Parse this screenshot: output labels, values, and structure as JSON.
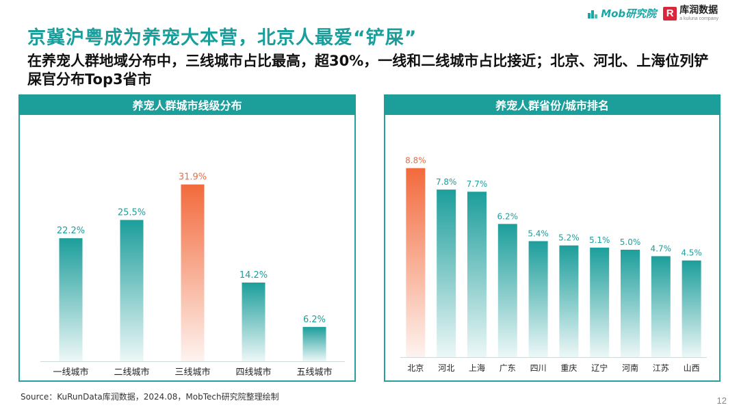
{
  "header": {
    "title": "京冀沪粤成为养宠大本营，北京人最爱“铲屎”",
    "subtitle": "在养宠人群地域分布中，三线城市占比最高，超30%，一线和二线城市占比接近；北京、河北、上海位列铲屎官分布Top3省市"
  },
  "brand": {
    "mob_label": "Mob研究院",
    "kurun_mark": "R",
    "kurun_label": "库润数据",
    "kurun_sub": "a kuluna company"
  },
  "colors": {
    "teal": "#1c9e9b",
    "highlight": "#f26a3c"
  },
  "chart_data": [
    {
      "type": "bar",
      "title": "养宠人群城市线级分布",
      "categories": [
        "一线城市",
        "二线城市",
        "三线城市",
        "四线城市",
        "五线城市"
      ],
      "values": [
        22.2,
        25.5,
        31.9,
        14.2,
        6.2
      ],
      "labels": [
        "22.2%",
        "25.5%",
        "31.9%",
        "14.2%",
        "6.2%"
      ],
      "highlight_index": 2,
      "ylim": [
        0,
        40
      ],
      "grid": false
    },
    {
      "type": "bar",
      "title": "养宠人群省份/城市排名",
      "categories": [
        "北京",
        "河北",
        "上海",
        "广东",
        "四川",
        "重庆",
        "辽宁",
        "河南",
        "江苏",
        "山西"
      ],
      "values": [
        8.8,
        7.8,
        7.7,
        6.2,
        5.4,
        5.2,
        5.1,
        5.0,
        4.7,
        4.5
      ],
      "labels": [
        "8.8%",
        "7.8%",
        "7.7%",
        "6.2%",
        "5.4%",
        "5.2%",
        "5.1%",
        "5.0%",
        "4.7%",
        "4.5%"
      ],
      "highlight_index": 0,
      "ylim": [
        0,
        10
      ],
      "grid": false
    }
  ],
  "footer": {
    "source": "Source：KuRunData库润数据，2024.08，MobTech研究院整理绘制",
    "page_number": "12"
  }
}
